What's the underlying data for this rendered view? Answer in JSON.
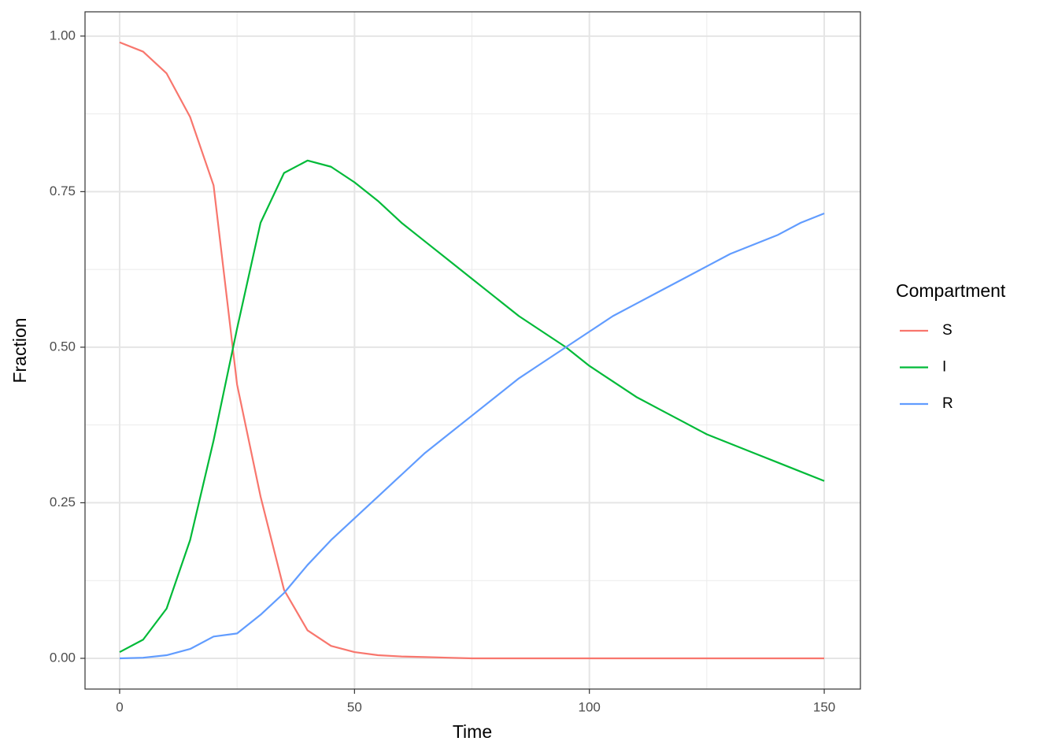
{
  "chart_data": {
    "type": "line",
    "x_label": "Time",
    "y_label": "Fraction",
    "legend_title": "Compartment",
    "legend_position": "right",
    "grid": true,
    "x": [
      0,
      5,
      10,
      15,
      20,
      25,
      30,
      35,
      40,
      45,
      50,
      55,
      60,
      65,
      70,
      75,
      80,
      85,
      90,
      95,
      100,
      105,
      110,
      115,
      120,
      125,
      130,
      135,
      140,
      145,
      150
    ],
    "series": [
      {
        "name": "S",
        "color": "#F8766D",
        "values": [
          0.99,
          0.975,
          0.94,
          0.87,
          0.76,
          0.44,
          0.26,
          0.11,
          0.045,
          0.02,
          0.01,
          0.005,
          0.003,
          0.002,
          0.001,
          0,
          0,
          0,
          0,
          0,
          0,
          0,
          0,
          0,
          0,
          0,
          0,
          0,
          0,
          0,
          0
        ]
      },
      {
        "name": "I",
        "color": "#00BA38",
        "values": [
          0.01,
          0.03,
          0.08,
          0.19,
          0.35,
          0.53,
          0.7,
          0.78,
          0.8,
          0.79,
          0.765,
          0.735,
          0.7,
          0.67,
          0.64,
          0.61,
          0.58,
          0.55,
          0.525,
          0.5,
          0.47,
          0.445,
          0.42,
          0.4,
          0.38,
          0.36,
          0.345,
          0.33,
          0.315,
          0.3,
          0.285
        ]
      },
      {
        "name": "R",
        "color": "#619CFF",
        "values": [
          0,
          0.001,
          0.005,
          0.015,
          0.035,
          0.04,
          0.07,
          0.105,
          0.15,
          0.19,
          0.225,
          0.26,
          0.295,
          0.33,
          0.36,
          0.39,
          0.42,
          0.45,
          0.475,
          0.5,
          0.525,
          0.55,
          0.57,
          0.59,
          0.61,
          0.63,
          0.65,
          0.665,
          0.68,
          0.7,
          0.715
        ]
      }
    ],
    "xlim": [
      -7.37,
      157.7
    ],
    "ylim": [
      -0.0494,
      1.039
    ],
    "xticks": [
      0,
      50,
      100,
      150
    ],
    "yticks": [
      {
        "value": 0,
        "label": "0.00"
      },
      {
        "value": 0.25,
        "label": "0.25"
      },
      {
        "value": 0.5,
        "label": "0.50"
      },
      {
        "value": 0.75,
        "label": "0.75"
      },
      {
        "value": 1,
        "label": "1.00"
      }
    ],
    "xminor": [
      25,
      75,
      125
    ],
    "yminor": [
      0.125,
      0.375,
      0.625,
      0.875
    ]
  }
}
